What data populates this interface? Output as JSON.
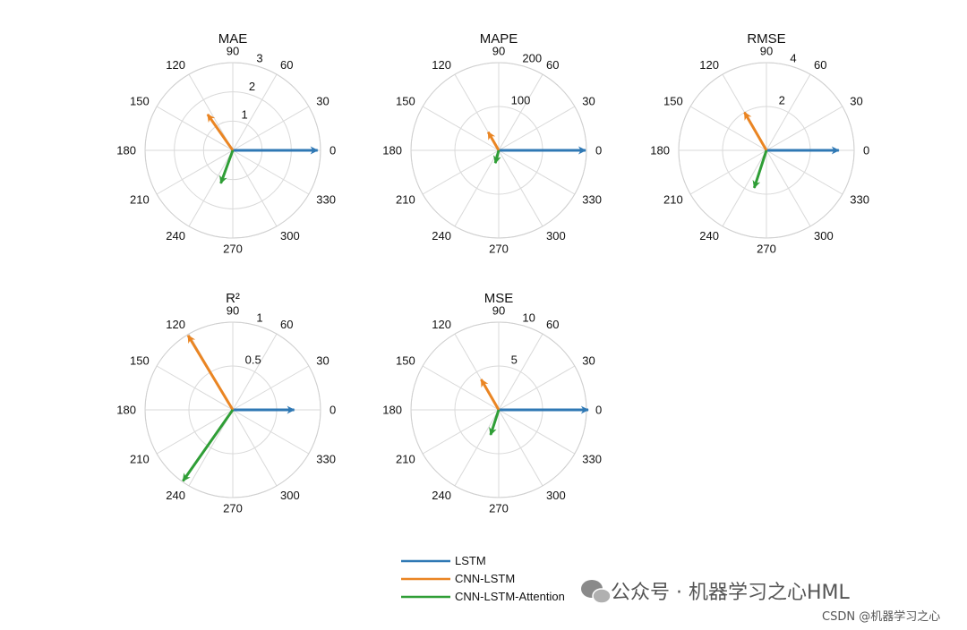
{
  "chart_data": [
    {
      "type": "polar-compass",
      "title": "MAE",
      "r_max": 3,
      "r_ticks": [
        1,
        2,
        3
      ],
      "theta_ticks": [
        0,
        30,
        60,
        90,
        120,
        150,
        180,
        210,
        240,
        270,
        300,
        330
      ],
      "arrows": [
        {
          "series": "LSTM",
          "r": 2.9,
          "angle": 0
        },
        {
          "series": "CNN-LSTM",
          "r": 1.5,
          "angle": 125
        },
        {
          "series": "CNN-LSTM-Attention",
          "r": 1.2,
          "angle": 250
        }
      ]
    },
    {
      "type": "polar-compass",
      "title": "MAPE",
      "r_max": 200,
      "r_ticks": [
        100,
        200
      ],
      "theta_ticks": [
        0,
        30,
        60,
        90,
        120,
        150,
        180,
        210,
        240,
        270,
        300,
        330
      ],
      "arrows": [
        {
          "series": "LSTM",
          "r": 198,
          "angle": 0
        },
        {
          "series": "CNN-LSTM",
          "r": 48,
          "angle": 120
        },
        {
          "series": "CNN-LSTM-Attention",
          "r": 30,
          "angle": 255
        }
      ]
    },
    {
      "type": "polar-compass",
      "title": "RMSE",
      "r_max": 4,
      "r_ticks": [
        2,
        4
      ],
      "theta_ticks": [
        0,
        30,
        60,
        90,
        120,
        150,
        180,
        210,
        240,
        270,
        300,
        330
      ],
      "arrows": [
        {
          "series": "LSTM",
          "r": 3.3,
          "angle": 0
        },
        {
          "series": "CNN-LSTM",
          "r": 2.0,
          "angle": 120
        },
        {
          "series": "CNN-LSTM-Attention",
          "r": 1.8,
          "angle": 252
        }
      ]
    },
    {
      "type": "polar-compass",
      "title": "R²",
      "r_max": 1,
      "r_ticks": [
        0.5,
        1
      ],
      "theta_ticks": [
        0,
        30,
        60,
        90,
        120,
        150,
        180,
        210,
        240,
        270,
        300,
        330
      ],
      "arrows": [
        {
          "series": "LSTM",
          "r": 0.7,
          "angle": 0
        },
        {
          "series": "CNN-LSTM",
          "r": 0.99,
          "angle": 121
        },
        {
          "series": "CNN-LSTM-Attention",
          "r": 0.99,
          "angle": 235
        }
      ]
    },
    {
      "type": "polar-compass",
      "title": "MSE",
      "r_max": 10,
      "r_ticks": [
        5,
        10
      ],
      "theta_ticks": [
        0,
        30,
        60,
        90,
        120,
        150,
        180,
        210,
        240,
        270,
        300,
        330
      ],
      "arrows": [
        {
          "series": "LSTM",
          "r": 10.2,
          "angle": 0
        },
        {
          "series": "CNN-LSTM",
          "r": 4.0,
          "angle": 120
        },
        {
          "series": "CNN-LSTM-Attention",
          "r": 3.0,
          "angle": 252
        }
      ]
    }
  ],
  "series_colors": {
    "LSTM": "#2f78b4",
    "CNN-LSTM": "#ea8523",
    "CNN-LSTM-Attention": "#2f9e36"
  },
  "legend": {
    "placement": "bottom-center",
    "entries": [
      "LSTM",
      "CNN-LSTM",
      "CNN-LSTM-Attention"
    ]
  },
  "watermark": {
    "line1": "公众号 · 机器学习之心HML",
    "line2": "CSDN @机器学习之心"
  }
}
